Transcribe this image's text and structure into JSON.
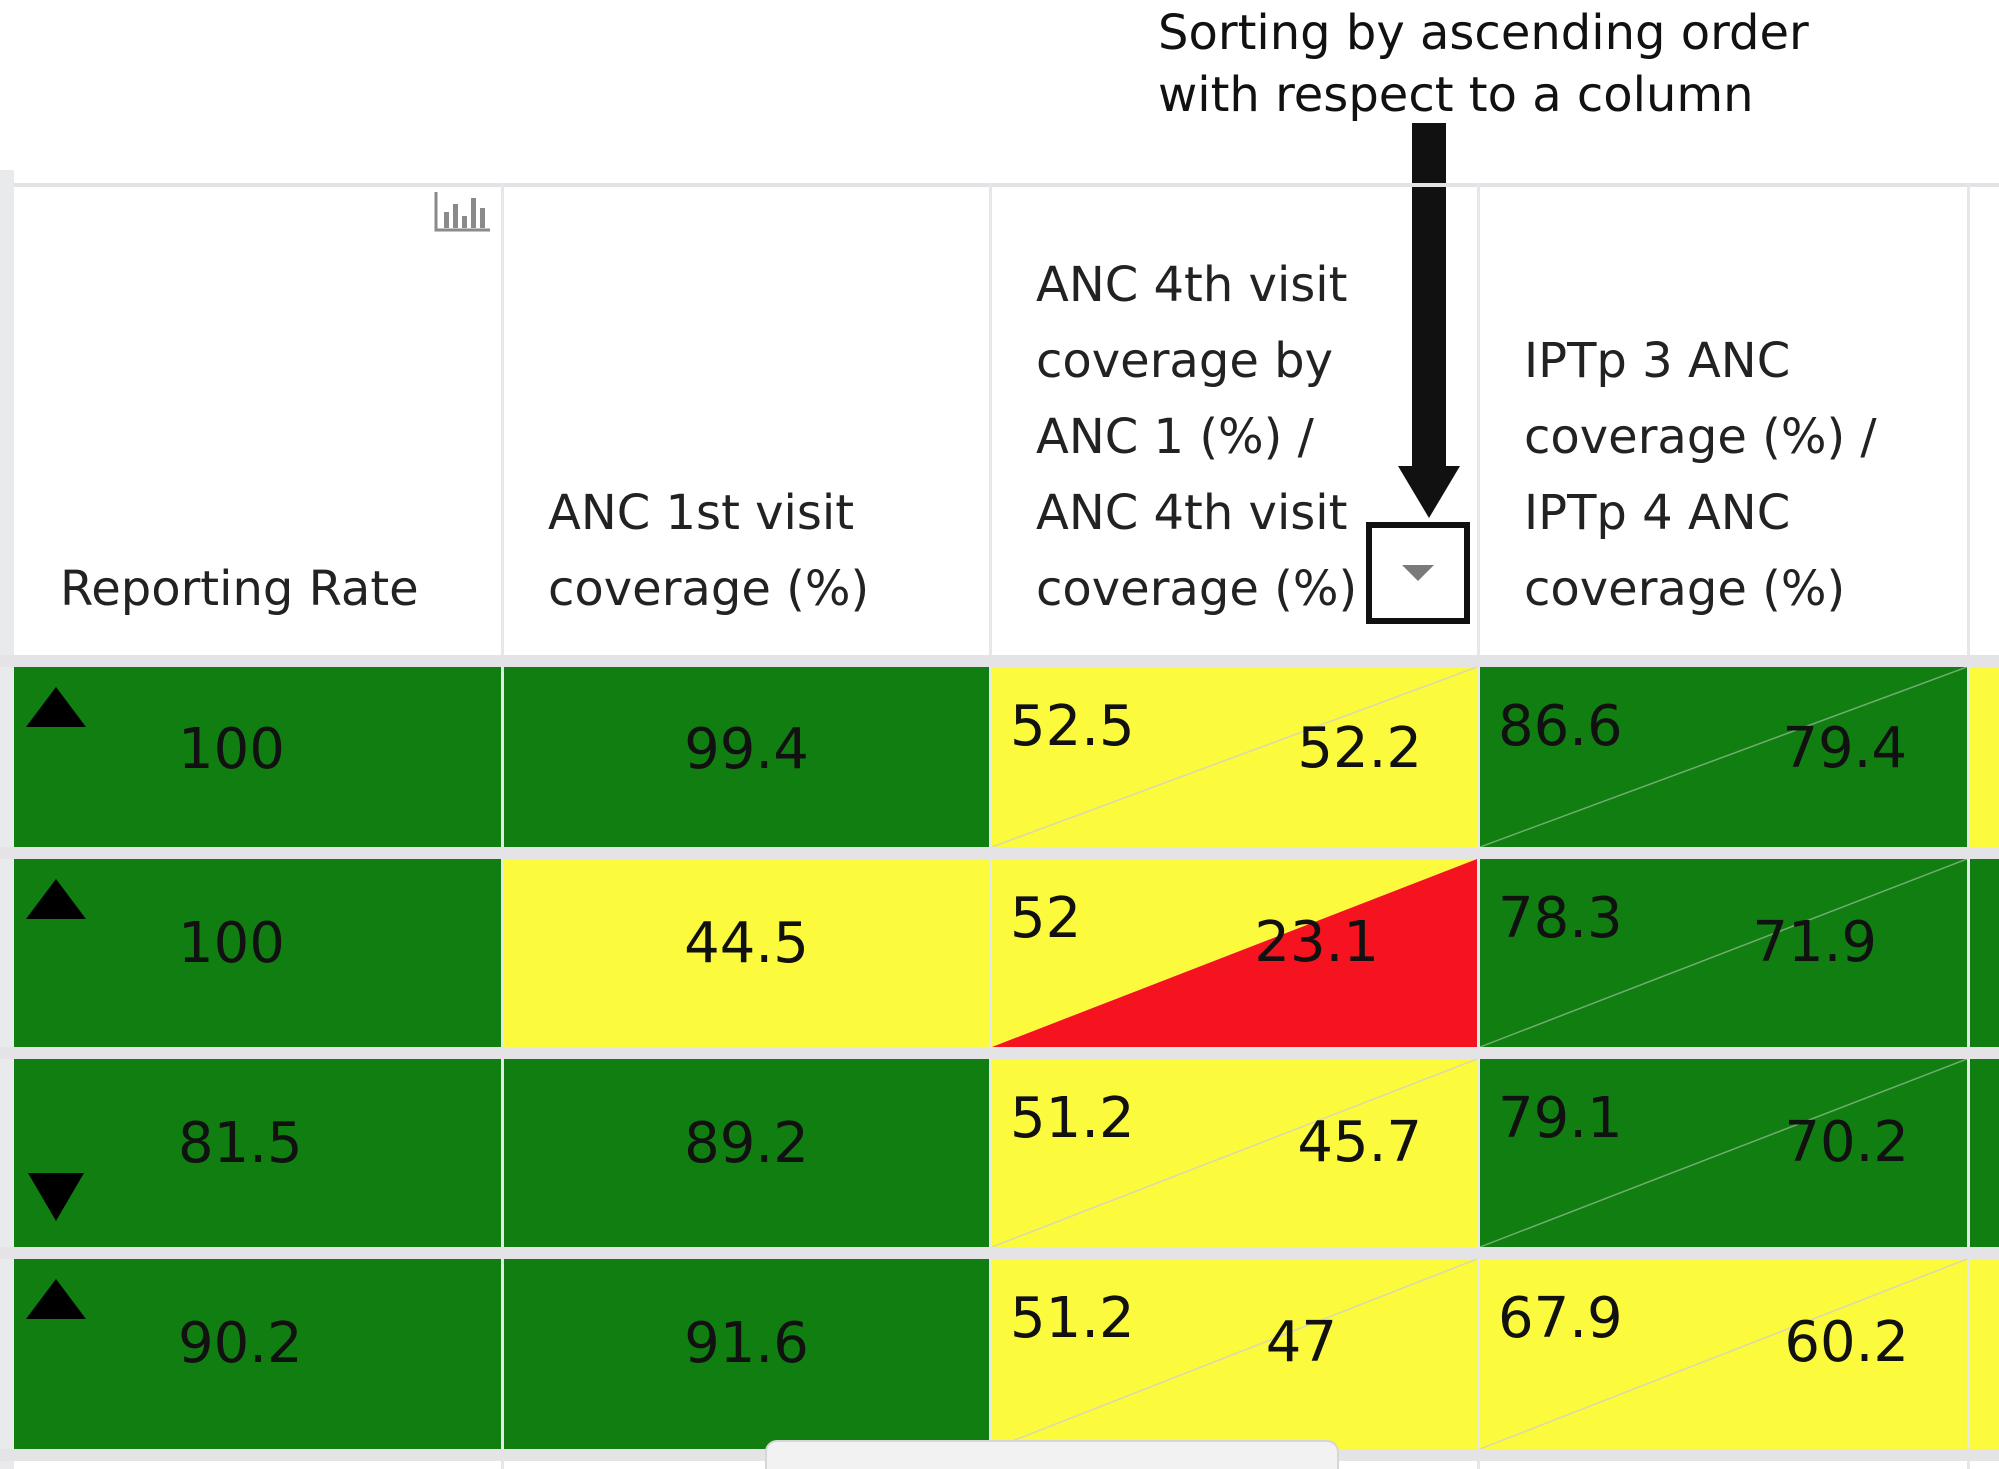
{
  "annotation": {
    "line1": "Sorting by ascending order",
    "line2": "with respect to a column"
  },
  "table": {
    "headers": [
      {
        "label": "Reporting Rate"
      },
      {
        "label": "ANC 1st visit coverage (%)"
      },
      {
        "label_lines": [
          "ANC 4th visit",
          "coverage by",
          "ANC 1 (%) /",
          "ANC 4th visit",
          "coverage (%)"
        ]
      },
      {
        "label_lines": [
          "IPTp 3 ANC",
          "coverage (%) /",
          "IPTp 4 ANC",
          "coverage (%)"
        ]
      }
    ],
    "rows": [
      {
        "trend": "up",
        "reporting_rate": "100",
        "anc1": "99.4",
        "anc4_by_anc1": "52.5",
        "anc4": "52.2",
        "iptp3": "86.6",
        "iptp4": "79.4"
      },
      {
        "trend": "up",
        "reporting_rate": "100",
        "anc1": "44.5",
        "anc4_by_anc1": "52",
        "anc4": "23.1",
        "iptp3": "78.3",
        "iptp4": "71.9"
      },
      {
        "trend": "down",
        "reporting_rate": "81.5",
        "anc1": "89.2",
        "anc4_by_anc1": "51.2",
        "anc4": "45.7",
        "iptp3": "79.1",
        "iptp4": "70.2"
      },
      {
        "trend": "up",
        "reporting_rate": "90.2",
        "anc1": "91.6",
        "anc4_by_anc1": "51.2",
        "anc4": "47",
        "iptp3": "67.9",
        "iptp4": "60.2"
      }
    ]
  },
  "colors": {
    "green": "#117e12",
    "yellow": "#fcfa3d",
    "red": "#f5131f"
  },
  "icons": {
    "chart": "bar-chart-icon",
    "sort": "sort-caret-down-icon",
    "trend_up": "triangle-up-icon",
    "trend_down": "triangle-down-icon"
  }
}
